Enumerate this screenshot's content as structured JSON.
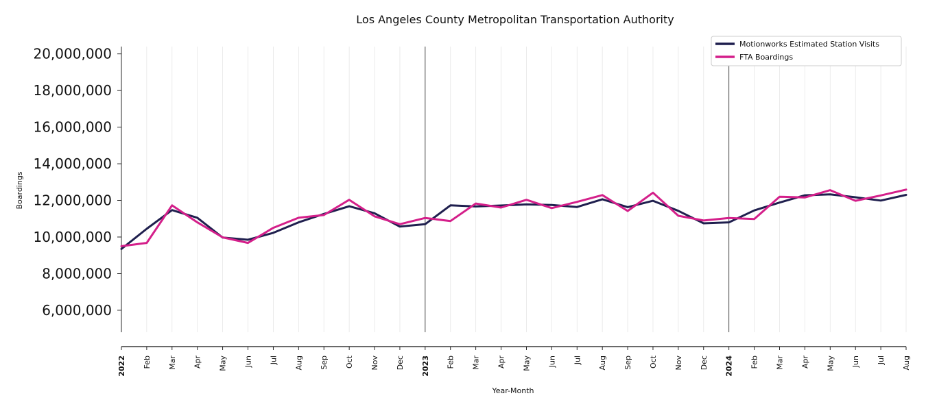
{
  "chart_data": {
    "type": "line",
    "title": "Los Angeles County Metropolitan Transportation Authority",
    "xlabel": "Year-Month",
    "ylabel": "Boardings",
    "ylim": [
      4800000,
      20400000
    ],
    "yticks": [
      6000000,
      8000000,
      10000000,
      12000000,
      14000000,
      16000000,
      18000000,
      20000000
    ],
    "ytick_labels": [
      "6,000,000",
      "8,000,000",
      "10,000,000",
      "12,000,000",
      "14,000,000",
      "16,000,000",
      "18,000,000",
      "20,000,000"
    ],
    "categories": [
      "2022",
      "Feb",
      "Mar",
      "Apr",
      "May",
      "Jun",
      "Jul",
      "Aug",
      "Sep",
      "Oct",
      "Nov",
      "Dec",
      "2023",
      "Feb",
      "Mar",
      "Apr",
      "May",
      "Jun",
      "Jul",
      "Aug",
      "Sep",
      "Oct",
      "Nov",
      "Dec",
      "2024",
      "Feb",
      "Mar",
      "Apr",
      "May",
      "Jun",
      "Jul",
      "Aug"
    ],
    "year_markers": [
      "2023",
      "2024"
    ],
    "grid": "vertical",
    "legend_position": "top-right",
    "series": [
      {
        "name": "Motionworks Estimated Station Visits",
        "color": "#1f1f4e",
        "values": [
          9350000,
          10450000,
          11470000,
          11050000,
          9970000,
          9850000,
          10230000,
          10800000,
          11260000,
          11680000,
          11300000,
          10570000,
          10700000,
          11730000,
          11670000,
          11720000,
          11780000,
          11750000,
          11640000,
          12060000,
          11630000,
          11980000,
          11430000,
          10750000,
          10800000,
          11450000,
          11880000,
          12280000,
          12330000,
          12170000,
          11990000,
          12300000
        ]
      },
      {
        "name": "FTA Boardings",
        "color": "#d41f8a",
        "values": [
          9500000,
          9680000,
          11730000,
          10800000,
          9980000,
          9680000,
          10500000,
          11050000,
          11200000,
          12030000,
          11130000,
          10700000,
          11040000,
          10870000,
          11830000,
          11610000,
          12030000,
          11580000,
          11920000,
          12290000,
          11420000,
          12420000,
          11160000,
          10900000,
          11040000,
          10980000,
          12200000,
          12160000,
          12560000,
          11980000,
          12270000,
          12590000
        ]
      }
    ]
  }
}
